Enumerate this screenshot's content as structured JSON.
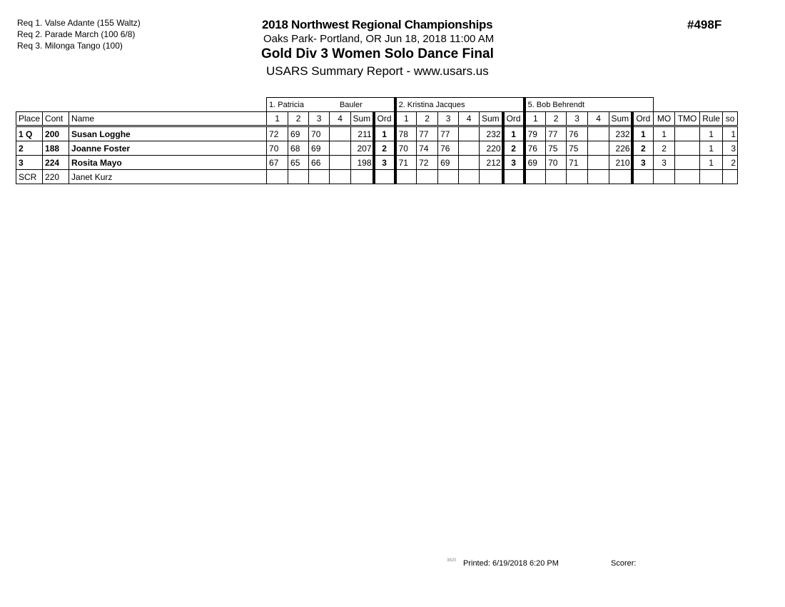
{
  "requirements": [
    "Req  1.  Valse Adante (155 Waltz)",
    "Req  2.  Parade March (100 6/8)",
    "Req  3.  Milonga Tango (100)"
  ],
  "header": {
    "title": "2018 Northwest Regional Championships",
    "location": "Oaks Park- Portland, OR  Jun 18, 2018  11:00 AM",
    "event": "Gold Div 3 Women Solo Dance Final",
    "report": "USARS Summary Report - www.usars.us",
    "event_number": "#498F"
  },
  "judges": [
    {
      "label": "1.  Patricia",
      "label2": "Bauler"
    },
    {
      "label": "2.  Kristina Jacques",
      "label2": ""
    },
    {
      "label": "5.  Bob Behrendt",
      "label2": ""
    }
  ],
  "columns": {
    "place": "Place",
    "cont": "Cont",
    "name": "Name",
    "scores": [
      "1",
      "2",
      "3",
      "4",
      "Sum",
      "Ord"
    ],
    "mo": "MO",
    "tmo": "TMO",
    "rule": "Rule",
    "so": "so"
  },
  "rows": [
    {
      "place": "1 Q",
      "cont": "200",
      "name": "Susan Logghe",
      "j": [
        [
          "72",
          "69",
          "70",
          "",
          "211",
          "1"
        ],
        [
          "78",
          "77",
          "77",
          "",
          "232",
          "1"
        ],
        [
          "79",
          "77",
          "76",
          "",
          "232",
          "1"
        ]
      ],
      "mo": "1",
      "tmo": "",
      "rule": "1",
      "so": "1"
    },
    {
      "place": "2",
      "cont": "188",
      "name": "Joanne Foster",
      "j": [
        [
          "70",
          "68",
          "69",
          "",
          "207",
          "2"
        ],
        [
          "70",
          "74",
          "76",
          "",
          "220",
          "2"
        ],
        [
          "76",
          "75",
          "75",
          "",
          "226",
          "2"
        ]
      ],
      "mo": "2",
      "tmo": "",
      "rule": "1",
      "so": "3"
    },
    {
      "place": "3",
      "cont": "224",
      "name": "Rosita Mayo",
      "j": [
        [
          "67",
          "65",
          "66",
          "",
          "198",
          "3"
        ],
        [
          "71",
          "72",
          "69",
          "",
          "212",
          "3"
        ],
        [
          "69",
          "70",
          "71",
          "",
          "210",
          "3"
        ]
      ],
      "mo": "3",
      "tmo": "",
      "rule": "1",
      "so": "2"
    },
    {
      "place": "SCR",
      "cont": "220",
      "name": "Janet Kurz",
      "j": [
        [
          "",
          "",
          "",
          "",
          "",
          ""
        ],
        [
          "",
          "",
          "",
          "",
          "",
          ""
        ],
        [
          "",
          "",
          "",
          "",
          "",
          ""
        ]
      ],
      "mo": "",
      "tmo": "",
      "rule": "",
      "so": ""
    }
  ],
  "footer": {
    "code": "3820",
    "printed": "Printed:  6/19/2018  6:20 PM",
    "scorer": "Scorer:"
  }
}
